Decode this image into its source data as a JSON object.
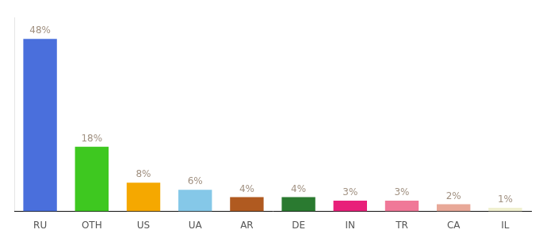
{
  "chart_data": {
    "type": "bar",
    "categories": [
      "RU",
      "OTH",
      "US",
      "UA",
      "AR",
      "DE",
      "IN",
      "TR",
      "CA",
      "IL"
    ],
    "values": [
      48,
      18,
      8,
      6,
      4,
      4,
      3,
      3,
      2,
      1
    ],
    "value_labels": [
      "48%",
      "18%",
      "8%",
      "6%",
      "4%",
      "4%",
      "3%",
      "3%",
      "2%",
      "1%"
    ],
    "colors": [
      "#4a6fdc",
      "#3ec820",
      "#f5a800",
      "#85c8e8",
      "#b05a20",
      "#2a7a30",
      "#e8207a",
      "#f07898",
      "#e8a898",
      "#f0f0d0"
    ],
    "ylim": [
      0,
      54
    ],
    "grid": false,
    "data_labels": true,
    "tick_labels": "x"
  }
}
